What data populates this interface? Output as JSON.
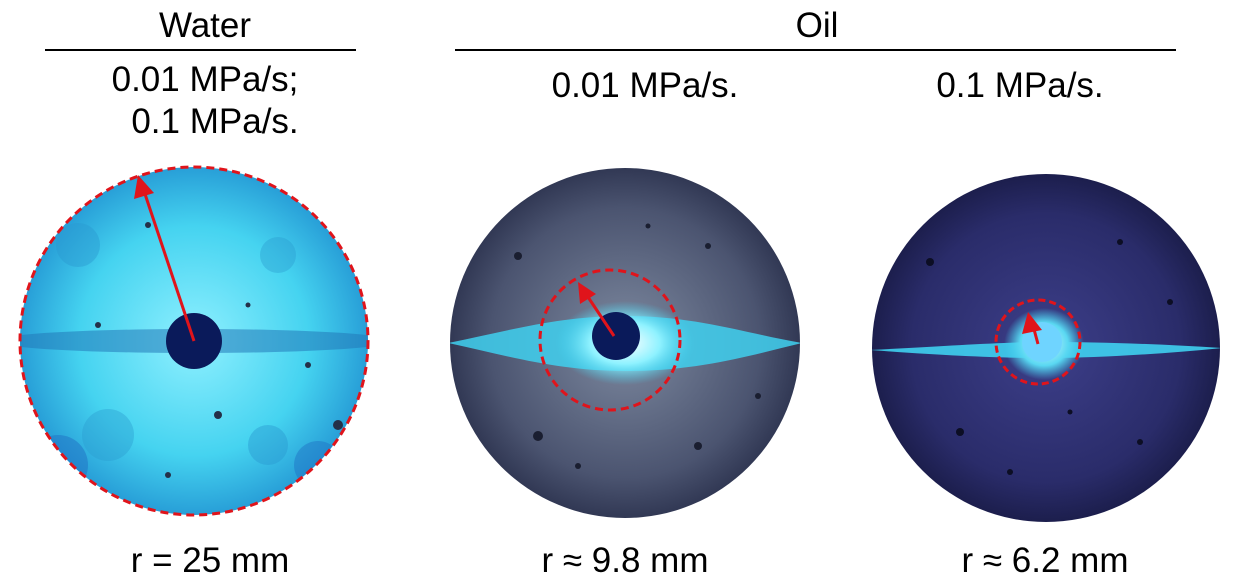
{
  "groups": {
    "water": "Water",
    "oil": "Oil"
  },
  "conditions": {
    "water_line1": "0.01 MPa/s;",
    "water_line2": "0.1 MPa/s.",
    "oil_low": "0.01 MPa/s.",
    "oil_high": "0.1 MPa/s."
  },
  "radii": {
    "water": "r = 25 mm",
    "oil_low": "r ≈ 9.8 mm",
    "oil_high": "r ≈ 6.2 mm"
  },
  "colors": {
    "marker": "#e0141b",
    "water_glow": "#3fd0ef",
    "oil_dark": "#2a2f52",
    "hole": "#0a1a5a"
  }
}
